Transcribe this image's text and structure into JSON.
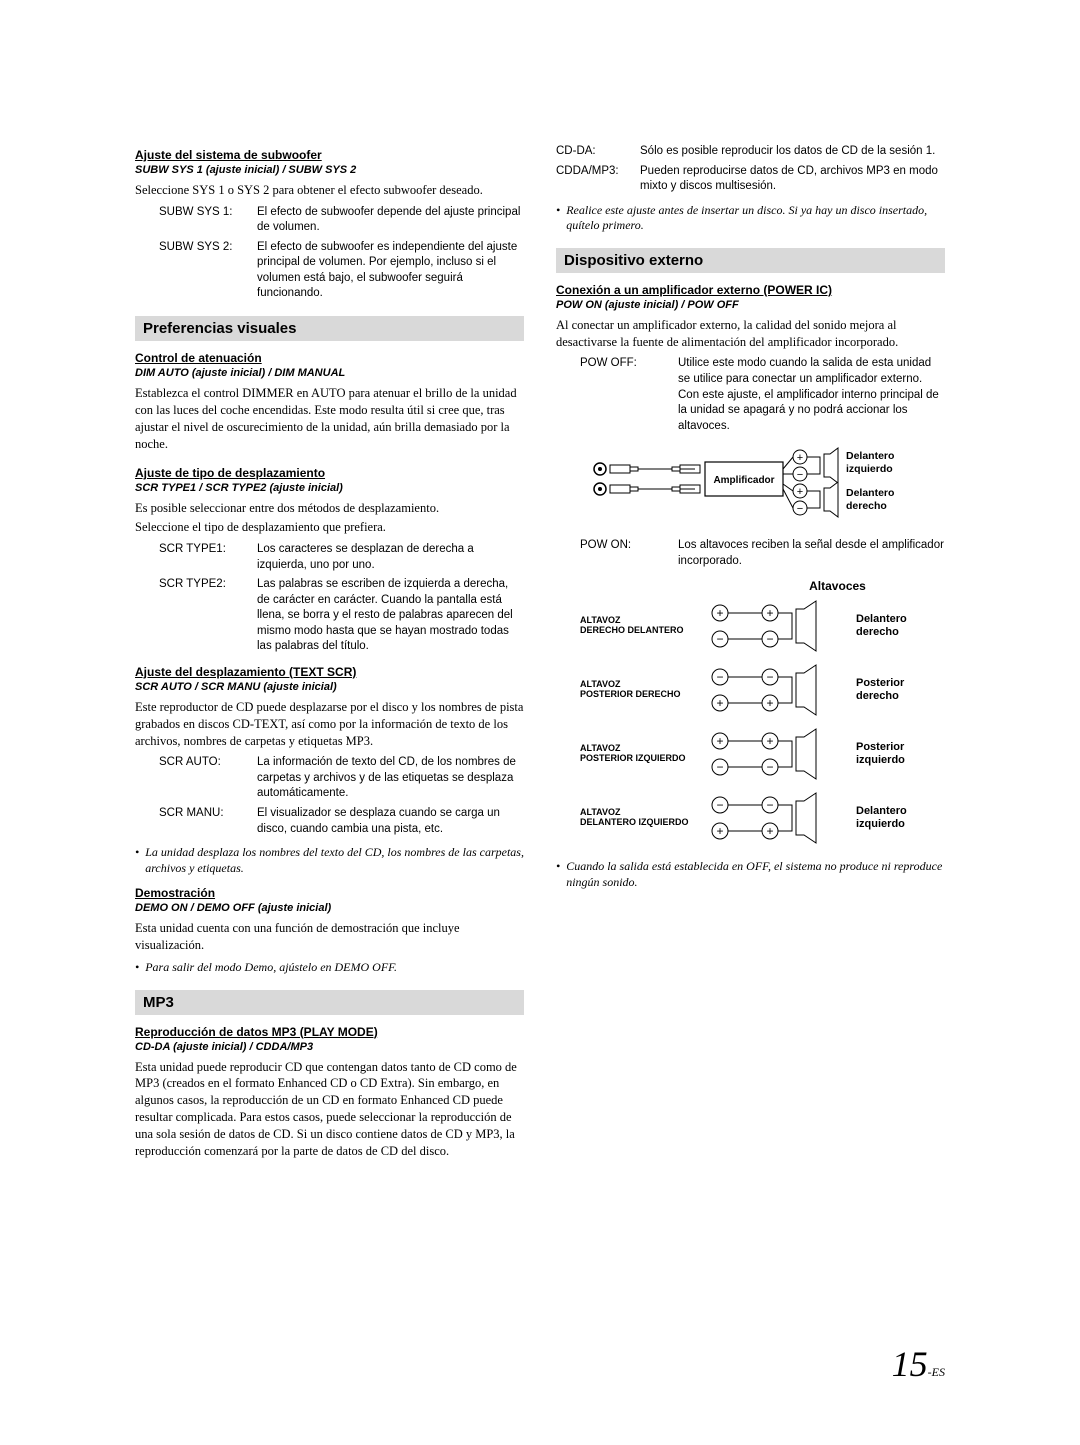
{
  "left": {
    "subw": {
      "title": "Ajuste del sistema de subwoofer",
      "setting": "SUBW SYS 1 (ajuste inicial) / SUBW SYS 2",
      "intro": "Seleccione SYS 1 o SYS 2 para obtener el efecto subwoofer deseado.",
      "rows": [
        {
          "term": "SUBW SYS 1:",
          "desc": "El efecto de subwoofer depende del ajuste principal de volumen."
        },
        {
          "term": "SUBW SYS 2:",
          "desc": "El efecto de subwoofer es independiente del ajuste principal de volumen. Por ejemplo, incluso si el volumen está bajo, el subwoofer seguirá funcionando."
        }
      ]
    },
    "pref_bar": "Preferencias visuales",
    "dim": {
      "title": "Control de atenuación",
      "setting": "DIM AUTO (ajuste inicial) / DIM MANUAL",
      "body": "Establezca el control DIMMER en AUTO para atenuar el brillo de la unidad con las luces del coche encendidas. Este modo resulta útil si cree que, tras ajustar el nivel de oscurecimiento de la unidad, aún brilla demasiado por la noche."
    },
    "scrtype": {
      "title": "Ajuste de tipo de desplazamiento",
      "setting": "SCR TYPE1 / SCR TYPE2 (ajuste inicial)",
      "body1": "Es posible seleccionar entre dos métodos de desplazamiento.",
      "body2": "Seleccione el tipo de desplazamiento que prefiera.",
      "rows": [
        {
          "term": "SCR TYPE1:",
          "desc": "Los caracteres se desplazan de derecha a izquierda, uno por uno."
        },
        {
          "term": "SCR TYPE2:",
          "desc": "Las palabras se escriben de izquierda a derecha, de carácter en carácter. Cuando la pantalla está llena, se borra y el resto de palabras aparecen del mismo modo hasta que se hayan mostrado todas las palabras del título."
        }
      ]
    },
    "textscr": {
      "title": "Ajuste del desplazamiento (TEXT SCR)",
      "setting": "SCR AUTO / SCR MANU (ajuste inicial)",
      "body": "Este reproductor de CD puede desplazarse por el disco y los nombres de pista grabados en discos CD-TEXT, así como por la información de texto de los archivos, nombres de carpetas y etiquetas MP3.",
      "rows": [
        {
          "term": "SCR AUTO:",
          "desc": "La información de texto del CD, de los nombres de carpetas y archivos y de las etiquetas se desplaza automáticamente."
        },
        {
          "term": "SCR MANU:",
          "desc": "El visualizador se desplaza cuando se carga un disco, cuando cambia una pista, etc."
        }
      ],
      "note": "La unidad desplaza los nombres del texto del CD, los nombres de las carpetas, archivos y etiquetas."
    },
    "demo": {
      "title": "Demostración",
      "setting": "DEMO ON / DEMO OFF (ajuste inicial)",
      "body": "Esta unidad cuenta con una función de demostración que incluye visualización.",
      "note": "Para salir del modo Demo, ajústelo en DEMO OFF."
    },
    "mp3_bar": "MP3",
    "mp3": {
      "title": "Reproducción de datos MP3 (PLAY MODE)",
      "setting": "CD-DA (ajuste inicial) / CDDA/MP3",
      "body": "Esta unidad puede reproducir CD que contengan datos tanto de CD como de MP3 (creados en el formato Enhanced CD o CD Extra). Sin embargo, en algunos casos, la reproducción de un CD en formato Enhanced CD puede resultar complicada. Para estos casos, puede seleccionar la reproducción de una sola sesión de datos de CD. Si un disco contiene datos de CD y MP3, la reproducción comenzará por la parte de datos de CD del disco."
    }
  },
  "right": {
    "cdrows": [
      {
        "term": "CD-DA:",
        "desc": "Sólo es posible reproducir los datos de CD de la sesión 1."
      },
      {
        "term": "CDDA/MP3:",
        "desc": "Pueden reproducirse datos de CD, archivos MP3 en modo mixto y discos multisesión."
      }
    ],
    "cdnote": "Realice este ajuste antes de insertar un disco. Si ya hay un disco insertado, quítelo primero.",
    "ext_bar": "Dispositivo externo",
    "powic": {
      "title": "Conexión a un amplificador externo (POWER IC)",
      "setting": "POW ON (ajuste inicial) / POW OFF",
      "body": "Al conectar un amplificador externo, la calidad del sonido mejora al desactivarse la fuente de alimentación del amplificador incorporado.",
      "rows": [
        {
          "term": "POW OFF:",
          "desc": "Utilice este modo cuando la salida de esta unidad se utilice para conectar un amplificador externo. Con este ajuste, el amplificador interno principal de la unidad se apagará y no podrá accionar los altavoces."
        }
      ],
      "rows2": [
        {
          "term": "POW ON:",
          "desc": "Los altavoces reciben la señal desde el amplificador incorporado."
        }
      ],
      "amp_label": "Amplificador",
      "fl": "Delantero izquierdo",
      "fr": "Delantero derecho",
      "speakers_title": "Altavoces",
      "spk": [
        {
          "label1": "ALTAVOZ",
          "label2": "DERECHO DELANTERO",
          "side": "Delantero derecho",
          "pol": "+-"
        },
        {
          "label1": "ALTAVOZ",
          "label2": "POSTERIOR DERECHO",
          "side": "Posterior derecho",
          "pol": "-+"
        },
        {
          "label1": "ALTAVOZ",
          "label2": "POSTERIOR IZQUIERDO",
          "side": "Posterior izquierdo",
          "pol": "+-"
        },
        {
          "label1": "ALTAVOZ",
          "label2": "DELANTERO IZQUIERDO",
          "side": "Delantero izquierdo",
          "pol": "-+"
        }
      ],
      "endnote": "Cuando la salida está establecida en OFF, el sistema no produce ni reproduce ningún sonido."
    }
  },
  "page": {
    "num": "15",
    "suffix": "-ES"
  }
}
